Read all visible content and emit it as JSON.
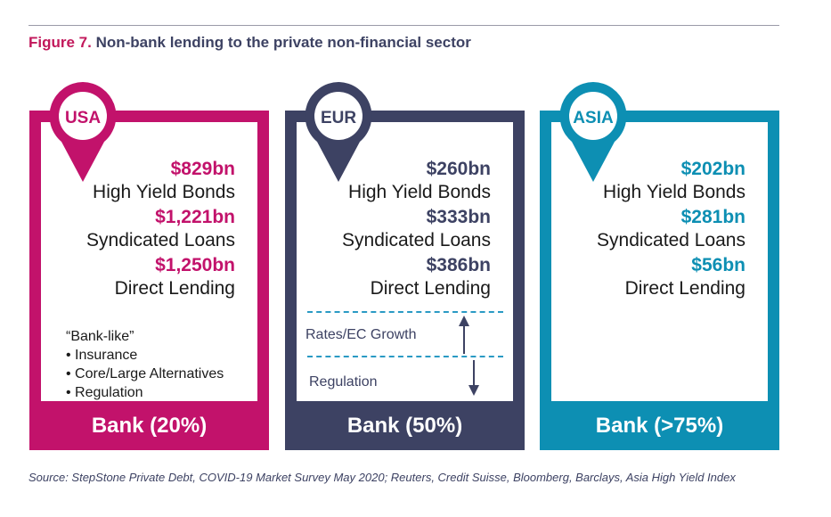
{
  "figure": {
    "number": "Figure 7.",
    "title": "Non-bank lending to the private non-financial sector"
  },
  "colors": {
    "usa": "#c2126b",
    "eur": "#3d4263",
    "asia": "#0d8fb3",
    "dash": "#2a9ac4"
  },
  "panels": [
    {
      "region": "USA",
      "stats": [
        {
          "value": "$829bn",
          "label": "High Yield Bonds"
        },
        {
          "value": "$1,221bn",
          "label": "Syndicated Loans"
        },
        {
          "value": "$1,250bn",
          "label": "Direct Lending"
        }
      ],
      "bank": "Bank (20%)",
      "banklike": {
        "heading": "“Bank-like”",
        "items": [
          "• Insurance",
          "• Core/Large Alternatives",
          "• Regulation"
        ]
      }
    },
    {
      "region": "EUR",
      "stats": [
        {
          "value": "$260bn",
          "label": "High Yield Bonds"
        },
        {
          "value": "$333bn",
          "label": "Syndicated Loans"
        },
        {
          "value": "$386bn",
          "label": "Direct Lending"
        }
      ],
      "bank": "Bank (50%)",
      "notes": {
        "up": "Rates/EC Growth",
        "down": "Regulation"
      }
    },
    {
      "region": "ASIA",
      "stats": [
        {
          "value": "$202bn",
          "label": "High Yield Bonds"
        },
        {
          "value": "$281bn",
          "label": "Syndicated Loans"
        },
        {
          "value": "$56bn",
          "label": "Direct Lending"
        }
      ],
      "bank": "Bank (>75%)"
    }
  ],
  "source": "Source: StepStone Private Debt, COVID-19 Market Survey May 2020; Reuters, Credit Suisse, Bloomberg, Barclays, Asia High Yield Index"
}
